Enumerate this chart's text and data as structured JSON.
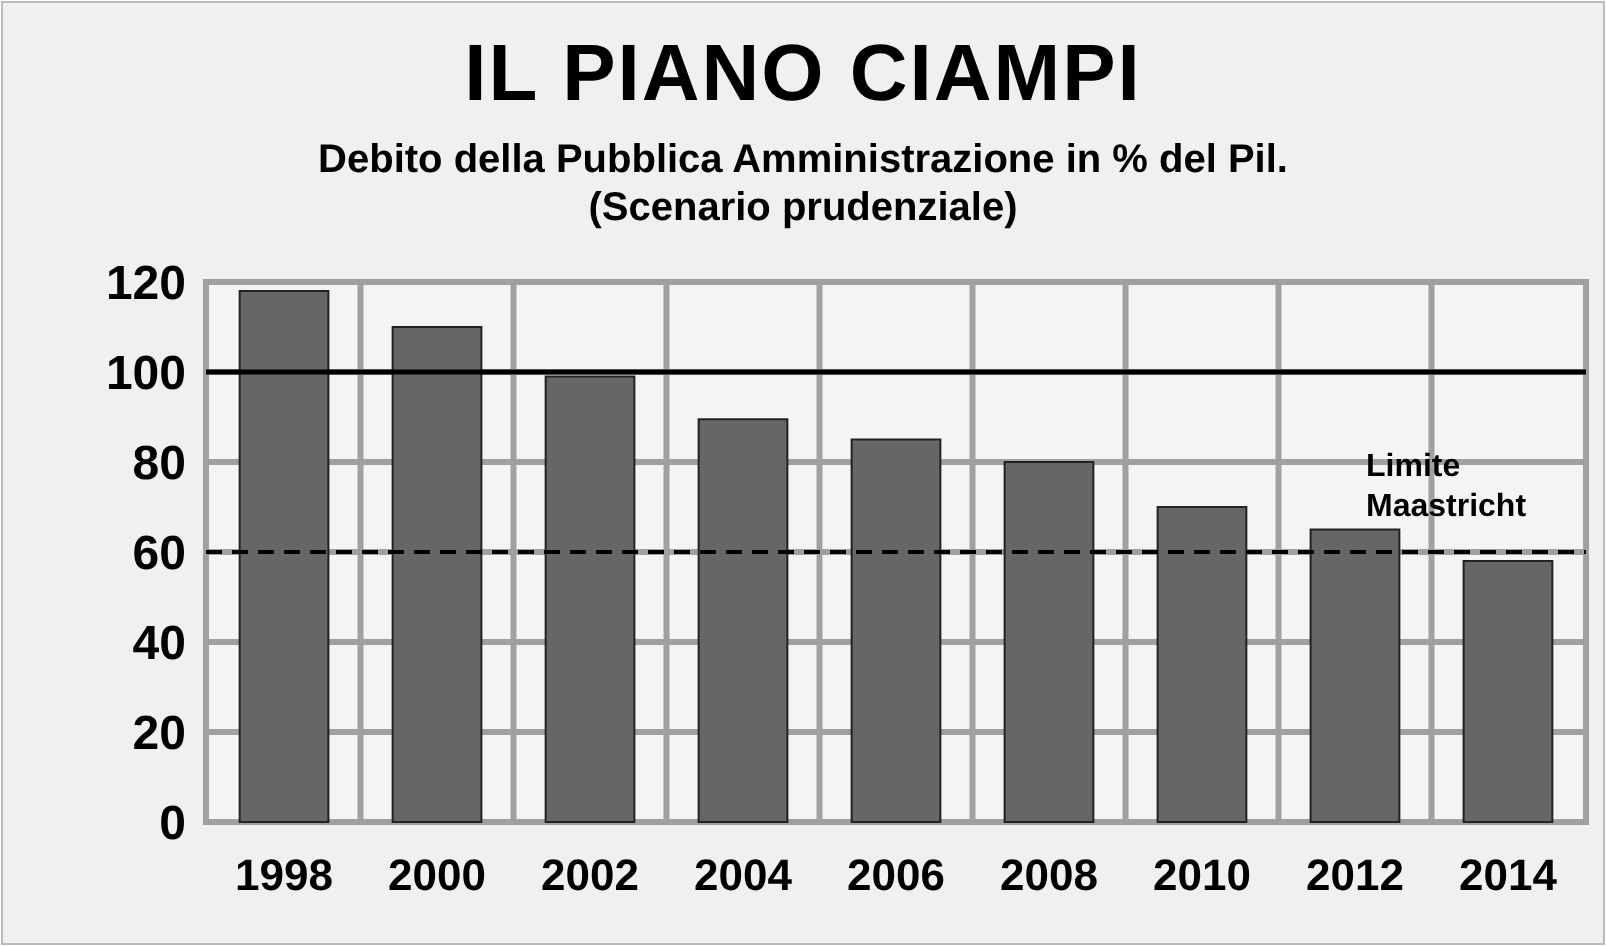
{
  "chart_data": {
    "type": "bar",
    "title": "IL PIANO CIAMPI",
    "subtitle": "Debito della Pubblica Amministrazione in % del Pil.\n(Scenario prudenziale)",
    "categories": [
      "1998",
      "2000",
      "2002",
      "2004",
      "2006",
      "2008",
      "2010",
      "2012",
      "2014"
    ],
    "values": [
      118,
      110,
      99,
      89.5,
      85,
      80,
      70,
      65,
      58
    ],
    "color": "#666666",
    "ylim": [
      0,
      120
    ],
    "yticks": [
      0,
      20,
      40,
      60,
      80,
      100,
      120
    ],
    "grid": true,
    "ref_lines": [
      {
        "axis": "y",
        "value": 100,
        "label": null,
        "color": "#000000",
        "line_style": "solid"
      },
      {
        "axis": "y",
        "value": 60,
        "label": "Limite Maastricht",
        "color": "#000000",
        "line_style": "dashed"
      }
    ]
  }
}
